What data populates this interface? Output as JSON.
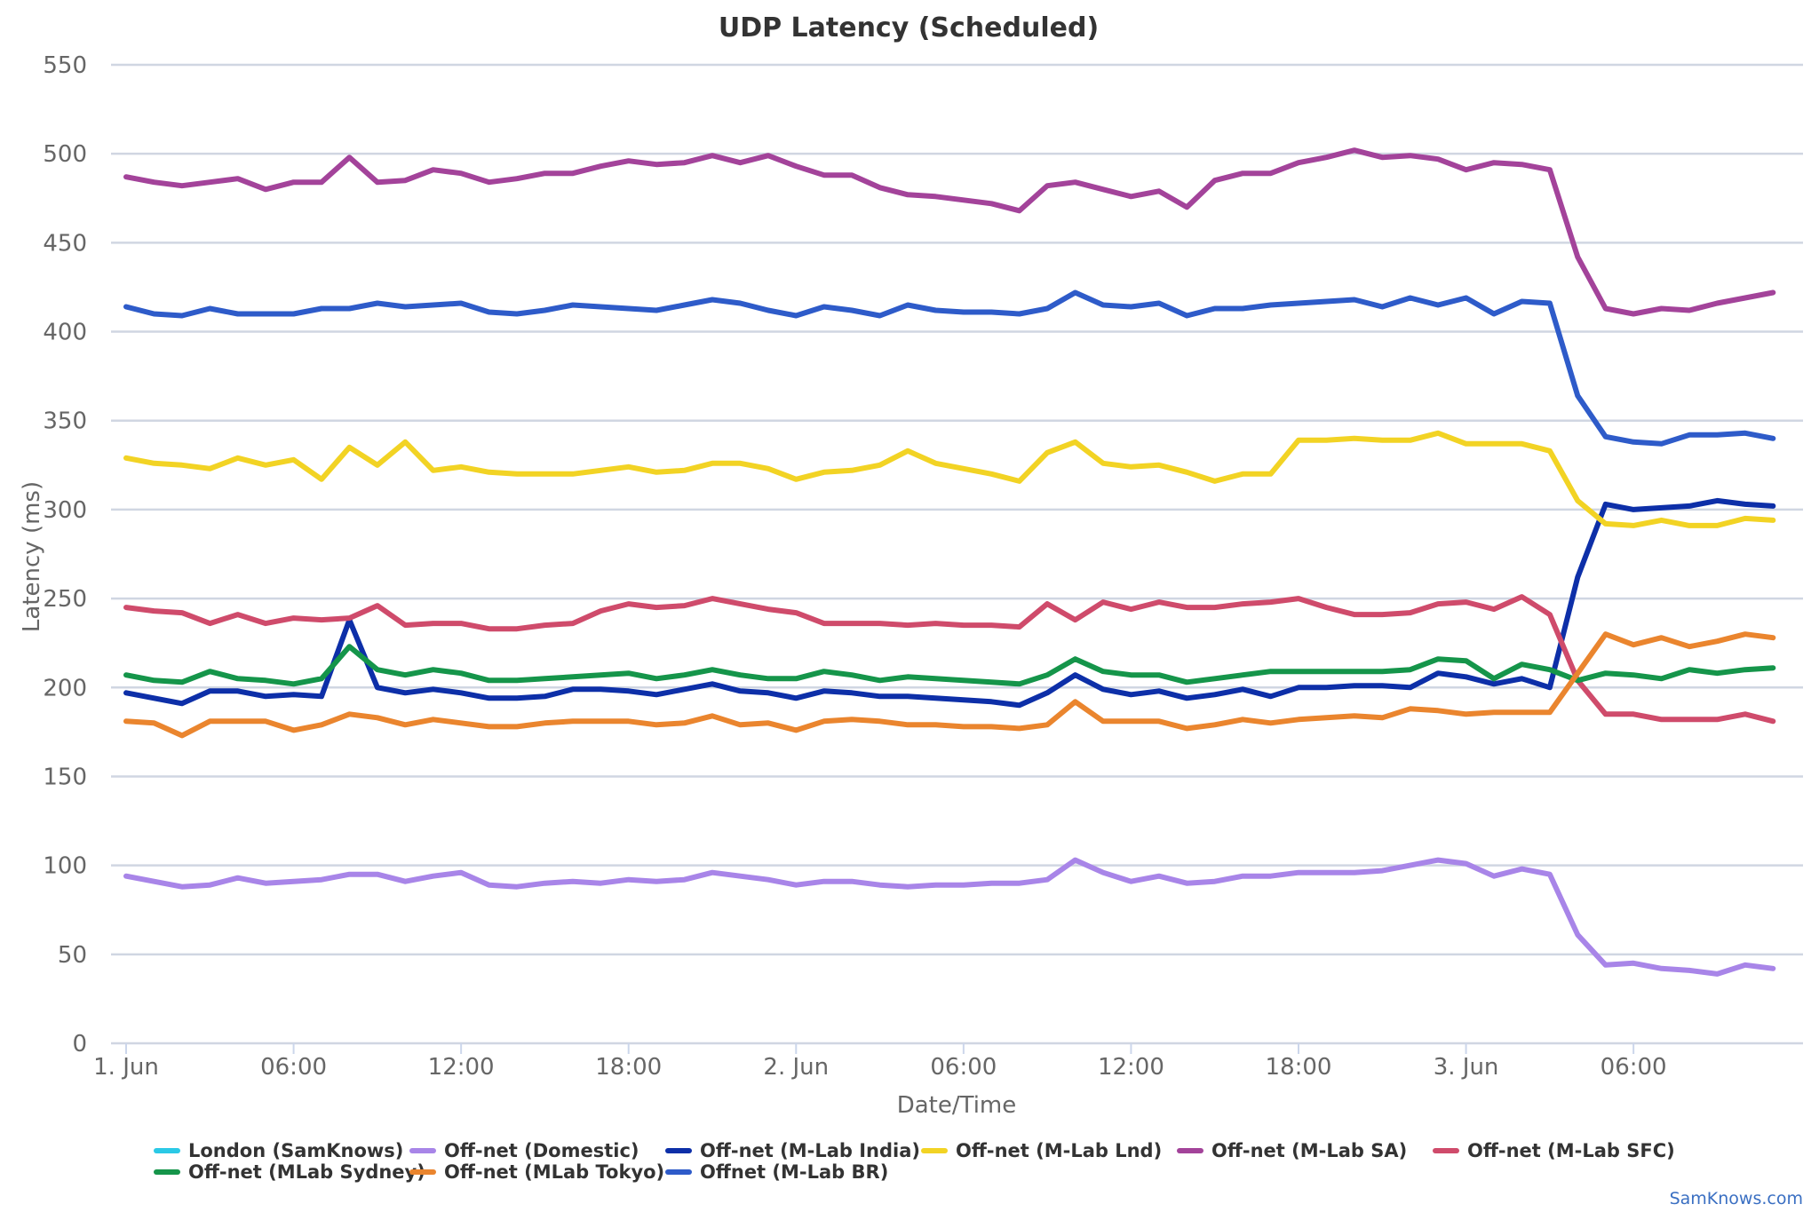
{
  "credit": "SamKnows.com",
  "chart_data": {
    "type": "line",
    "title": "UDP Latency (Scheduled)",
    "xlabel": "Date/Time",
    "ylabel": "Latency (ms)",
    "ylim": [
      0,
      550
    ],
    "yticks": [
      0,
      50,
      100,
      150,
      200,
      250,
      300,
      350,
      400,
      450,
      500,
      550
    ],
    "xlim": [
      "2017-06-01T00:00",
      "2017-06-03T11:30"
    ],
    "xticks": [
      {
        "t": "2017-06-01T00:00",
        "label": "1. Jun"
      },
      {
        "t": "2017-06-01T06:00",
        "label": "06:00"
      },
      {
        "t": "2017-06-01T12:00",
        "label": "12:00"
      },
      {
        "t": "2017-06-01T18:00",
        "label": "18:00"
      },
      {
        "t": "2017-06-02T00:00",
        "label": "2. Jun"
      },
      {
        "t": "2017-06-02T06:00",
        "label": "06:00"
      },
      {
        "t": "2017-06-02T12:00",
        "label": "12:00"
      },
      {
        "t": "2017-06-02T18:00",
        "label": "18:00"
      },
      {
        "t": "2017-06-03T00:00",
        "label": "3. Jun"
      },
      {
        "t": "2017-06-03T06:00",
        "label": "06:00"
      }
    ],
    "grid": true,
    "legend_position": "bottom",
    "x": [
      "2017-06-01T00:00",
      "2017-06-01T01:00",
      "2017-06-01T02:00",
      "2017-06-01T03:00",
      "2017-06-01T04:00",
      "2017-06-01T05:00",
      "2017-06-01T06:00",
      "2017-06-01T07:00",
      "2017-06-01T08:00",
      "2017-06-01T09:00",
      "2017-06-01T10:00",
      "2017-06-01T11:00",
      "2017-06-01T12:00",
      "2017-06-01T13:00",
      "2017-06-01T14:00",
      "2017-06-01T15:00",
      "2017-06-01T16:00",
      "2017-06-01T17:00",
      "2017-06-01T18:00",
      "2017-06-01T19:00",
      "2017-06-01T20:00",
      "2017-06-01T21:00",
      "2017-06-01T22:00",
      "2017-06-01T23:00",
      "2017-06-02T00:00",
      "2017-06-02T01:00",
      "2017-06-02T02:00",
      "2017-06-02T03:00",
      "2017-06-02T04:00",
      "2017-06-02T05:00",
      "2017-06-02T06:00",
      "2017-06-02T07:00",
      "2017-06-02T08:00",
      "2017-06-02T09:00",
      "2017-06-02T10:00",
      "2017-06-02T11:00",
      "2017-06-02T12:00",
      "2017-06-02T13:00",
      "2017-06-02T14:00",
      "2017-06-02T15:00",
      "2017-06-02T16:00",
      "2017-06-02T17:00",
      "2017-06-02T18:00",
      "2017-06-02T19:00",
      "2017-06-02T20:00",
      "2017-06-02T21:00",
      "2017-06-02T22:00",
      "2017-06-02T23:00",
      "2017-06-03T00:00",
      "2017-06-03T01:00",
      "2017-06-03T02:00",
      "2017-06-03T03:00",
      "2017-06-03T04:00",
      "2017-06-03T05:00",
      "2017-06-03T06:00",
      "2017-06-03T07:00",
      "2017-06-03T08:00",
      "2017-06-03T09:00",
      "2017-06-03T10:00",
      "2017-06-03T11:00"
    ],
    "series": [
      {
        "name": "London (SamKnows)",
        "color": "#2bc9e6",
        "values": null
      },
      {
        "name": "Off-net (Domestic)",
        "color": "#a885e8",
        "values": [
          94,
          91,
          88,
          89,
          93,
          90,
          91,
          92,
          95,
          95,
          91,
          94,
          96,
          89,
          88,
          90,
          91,
          90,
          92,
          91,
          92,
          96,
          94,
          92,
          89,
          91,
          91,
          89,
          88,
          89,
          89,
          90,
          90,
          92,
          103,
          96,
          91,
          94,
          90,
          91,
          94,
          94,
          96,
          96,
          96,
          97,
          100,
          103,
          101,
          94,
          98,
          95,
          61,
          44,
          45,
          42,
          41,
          39,
          44,
          42
        ]
      },
      {
        "name": "Off-net (M-Lab India)",
        "color": "#0d2fa8",
        "values": [
          197,
          194,
          191,
          198,
          198,
          195,
          196,
          195,
          238,
          200,
          197,
          199,
          197,
          194,
          194,
          195,
          199,
          199,
          198,
          196,
          199,
          202,
          198,
          197,
          194,
          198,
          197,
          195,
          195,
          194,
          193,
          192,
          190,
          197,
          207,
          199,
          196,
          198,
          194,
          196,
          199,
          195,
          200,
          200,
          201,
          201,
          200,
          208,
          206,
          202,
          205,
          200,
          262,
          303,
          300,
          301,
          302,
          305,
          303,
          302
        ]
      },
      {
        "name": "Off-net (M-Lab Lnd)",
        "color": "#f2d324",
        "values": [
          329,
          326,
          325,
          323,
          329,
          325,
          328,
          317,
          335,
          325,
          338,
          322,
          324,
          321,
          320,
          320,
          320,
          322,
          324,
          321,
          322,
          326,
          326,
          323,
          317,
          321,
          322,
          325,
          333,
          326,
          323,
          320,
          316,
          332,
          338,
          326,
          324,
          325,
          321,
          316,
          320,
          320,
          339,
          339,
          340,
          339,
          339,
          343,
          337,
          337,
          337,
          333,
          305,
          292,
          291,
          294,
          291,
          291,
          295,
          294
        ]
      },
      {
        "name": "Off-net (M-Lab SA)",
        "color": "#a3439a",
        "values": [
          487,
          484,
          482,
          484,
          486,
          480,
          484,
          484,
          498,
          484,
          485,
          491,
          489,
          484,
          486,
          489,
          489,
          493,
          496,
          494,
          495,
          499,
          495,
          499,
          493,
          488,
          488,
          481,
          477,
          476,
          474,
          472,
          468,
          482,
          484,
          480,
          476,
          479,
          470,
          485,
          489,
          489,
          495,
          498,
          502,
          498,
          499,
          497,
          491,
          495,
          494,
          491,
          442,
          413,
          410,
          413,
          412,
          416,
          419,
          422
        ]
      },
      {
        "name": "Off-net (M-Lab SFC)",
        "color": "#cf4b6b",
        "values": [
          245,
          243,
          242,
          236,
          241,
          236,
          239,
          238,
          239,
          246,
          235,
          236,
          236,
          233,
          233,
          235,
          236,
          243,
          247,
          245,
          246,
          250,
          247,
          244,
          242,
          236,
          236,
          236,
          235,
          236,
          235,
          235,
          234,
          247,
          238,
          248,
          244,
          248,
          245,
          245,
          247,
          248,
          250,
          245,
          241,
          241,
          242,
          247,
          248,
          244,
          251,
          241,
          204,
          185,
          185,
          182,
          182,
          182,
          185,
          181
        ]
      },
      {
        "name": "Off-net (MLab Sydney)",
        "color": "#15954a",
        "values": [
          207,
          204,
          203,
          209,
          205,
          204,
          202,
          205,
          223,
          210,
          207,
          210,
          208,
          204,
          204,
          205,
          206,
          207,
          208,
          205,
          207,
          210,
          207,
          205,
          205,
          209,
          207,
          204,
          206,
          205,
          204,
          203,
          202,
          207,
          216,
          209,
          207,
          207,
          203,
          205,
          207,
          209,
          209,
          209,
          209,
          209,
          210,
          216,
          215,
          205,
          213,
          210,
          204,
          208,
          207,
          205,
          210,
          208,
          210,
          211
        ]
      },
      {
        "name": "Off-net (MLab Tokyo)",
        "color": "#ea852e",
        "values": [
          181,
          180,
          173,
          181,
          181,
          181,
          176,
          179,
          185,
          183,
          179,
          182,
          180,
          178,
          178,
          180,
          181,
          181,
          181,
          179,
          180,
          184,
          179,
          180,
          176,
          181,
          182,
          181,
          179,
          179,
          178,
          178,
          177,
          179,
          192,
          181,
          181,
          181,
          177,
          179,
          182,
          180,
          182,
          183,
          184,
          183,
          188,
          187,
          185,
          186,
          186,
          186,
          208,
          230,
          224,
          228,
          223,
          226,
          230,
          228
        ]
      },
      {
        "name": "Offnet (M-Lab BR)",
        "color": "#2e5bc9",
        "values": [
          414,
          410,
          409,
          413,
          410,
          410,
          410,
          413,
          413,
          416,
          414,
          415,
          416,
          411,
          410,
          412,
          415,
          414,
          413,
          412,
          415,
          418,
          416,
          412,
          409,
          414,
          412,
          409,
          415,
          412,
          411,
          411,
          410,
          413,
          422,
          415,
          414,
          416,
          409,
          413,
          413,
          415,
          416,
          417,
          418,
          414,
          419,
          415,
          419,
          410,
          417,
          416,
          364,
          341,
          338,
          337,
          342,
          342,
          343,
          340
        ]
      }
    ]
  }
}
